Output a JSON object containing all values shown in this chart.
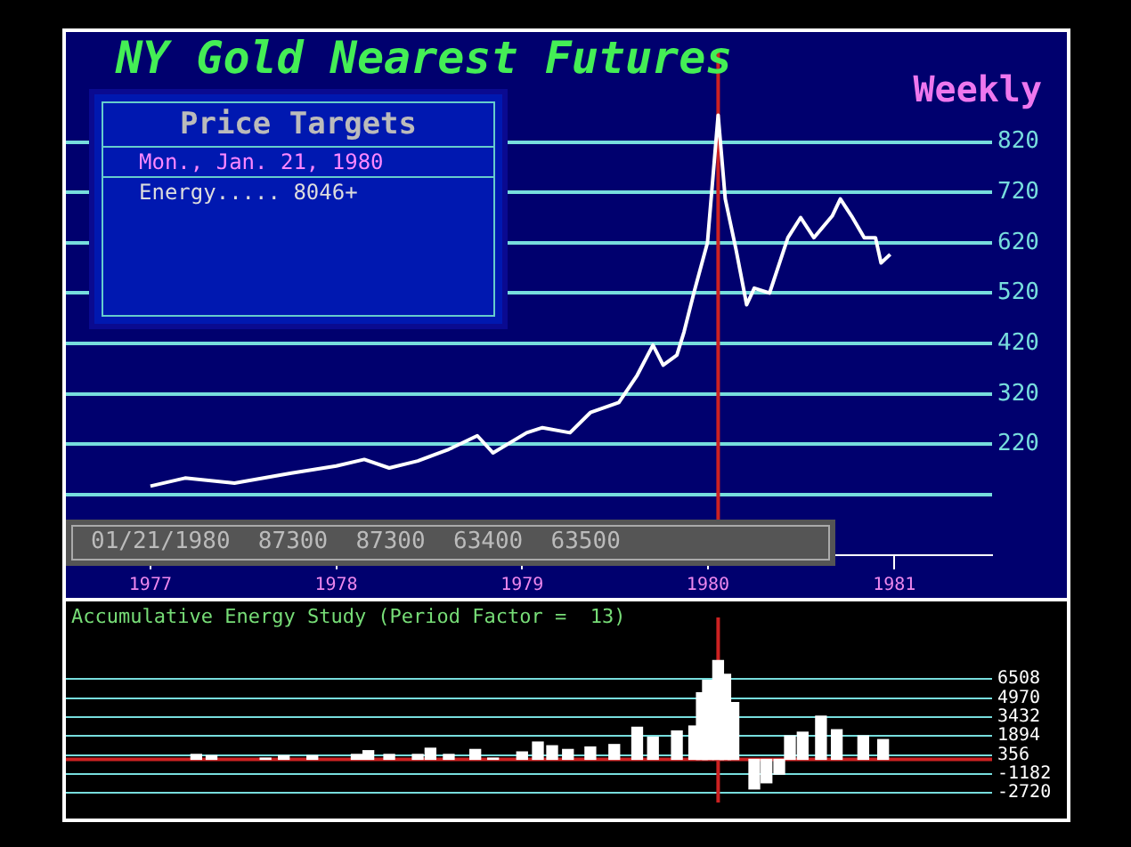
{
  "chart_data": [
    {
      "type": "line",
      "title": "NY Gold Nearest Futures",
      "subtitle": "Weekly",
      "annotations": [
        "Price Targets",
        "Mon., Jan. 21, 1980",
        "Energy..... 8046+",
        "01/21/1980  87300  87300  63400  63500"
      ],
      "x": [
        "1977-01-01",
        "1977-03-10",
        "1977-06-15",
        "1977-10-05",
        "1978-01-01",
        "1978-02-25",
        "1978-04-15",
        "1978-06-10",
        "1978-08-10",
        "1978-10-05",
        "1978-11-05",
        "1979-01-10",
        "1979-02-10",
        "1979-04-05",
        "1979-05-15",
        "1979-07-10",
        "1979-08-15",
        "1979-09-15",
        "1979-10-05",
        "1979-11-01",
        "1979-11-15",
        "1979-12-05",
        "1979-12-31",
        "1980-01-21",
        "1980-02-04",
        "1980-02-25",
        "1980-03-17",
        "1980-04-01",
        "1980-05-01",
        "1980-06-06",
        "1980-07-01",
        "1980-07-27",
        "1980-09-01",
        "1980-09-17",
        "1980-10-09",
        "1980-11-03",
        "1980-11-25",
        "1980-12-06",
        "1980-12-24"
      ],
      "series": [
        {
          "color": "#ffffff",
          "values": [
            137,
            153,
            143,
            163,
            177,
            190,
            173,
            187,
            210,
            237,
            203,
            243,
            253,
            243,
            283,
            303,
            357,
            417,
            377,
            397,
            443,
            523,
            620,
            873,
            707,
            607,
            497,
            530,
            520,
            630,
            670,
            630,
            673,
            707,
            673,
            630,
            630,
            580,
            597
          ]
        }
      ],
      "xlim": [
        "1976-07-19",
        "1981-07-12"
      ],
      "xticks": [
        "1977",
        "1978",
        "1979",
        "1980",
        "1981"
      ],
      "ylim": [
        0,
        1000
      ],
      "yticks": [
        {
          "value": 120,
          "label": null
        },
        220,
        320,
        420,
        520,
        620,
        720,
        820
      ],
      "grid": "y",
      "marker": "none",
      "ref_lines": [
        {
          "axis": "x",
          "value": "1980-01-21",
          "color": "#cc2222"
        }
      ]
    },
    {
      "type": "bar",
      "title": "Accumulative Energy Study (Period Factor =  13)",
      "x": [
        "1977-04-01",
        "1977-05-01",
        "1977-08-15",
        "1977-09-20",
        "1977-11-15",
        "1978-02-10",
        "1978-03-05",
        "1978-04-15",
        "1978-06-10",
        "1978-07-05",
        "1978-08-10",
        "1978-10-01",
        "1978-11-05",
        "1979-01-01",
        "1979-02-01",
        "1979-03-01",
        "1979-04-01",
        "1979-05-15",
        "1979-07-01",
        "1979-08-15",
        "1979-09-15",
        "1979-11-01",
        "1979-12-05",
        "1979-12-20",
        "1980-01-01",
        "1980-01-21",
        "1980-02-04",
        "1980-02-20",
        "1980-04-01",
        "1980-04-25",
        "1980-05-20",
        "1980-06-10",
        "1980-07-05",
        "1980-08-10",
        "1980-09-10",
        "1980-11-01",
        "1980-12-10"
      ],
      "series": [
        {
          "color": "#ffffff",
          "values": [
            400,
            300,
            100,
            300,
            300,
            400,
            700,
            400,
            400,
            900,
            400,
            800,
            100,
            600,
            1400,
            1100,
            800,
            1000,
            1200,
            2600,
            1800,
            2300,
            2700,
            5400,
            6400,
            8000,
            6900,
            4600,
            -2400,
            -1900,
            -1200,
            1900,
            2200,
            3500,
            2400,
            1900,
            1600
          ]
        }
      ],
      "xlim": [
        "1976-07-19",
        "1981-07-12"
      ],
      "ylim": [
        -3500,
        11500
      ],
      "yticks": [
        -2720,
        -1182,
        356,
        1894,
        3432,
        4970,
        6508
      ],
      "grid": "y",
      "tick_labels": "y",
      "ref_lines": [
        {
          "axis": "x",
          "value": "1980-01-21",
          "color": "#cc2222"
        },
        {
          "axis": "y",
          "value": 0,
          "color": "#cc2222"
        }
      ]
    }
  ]
}
